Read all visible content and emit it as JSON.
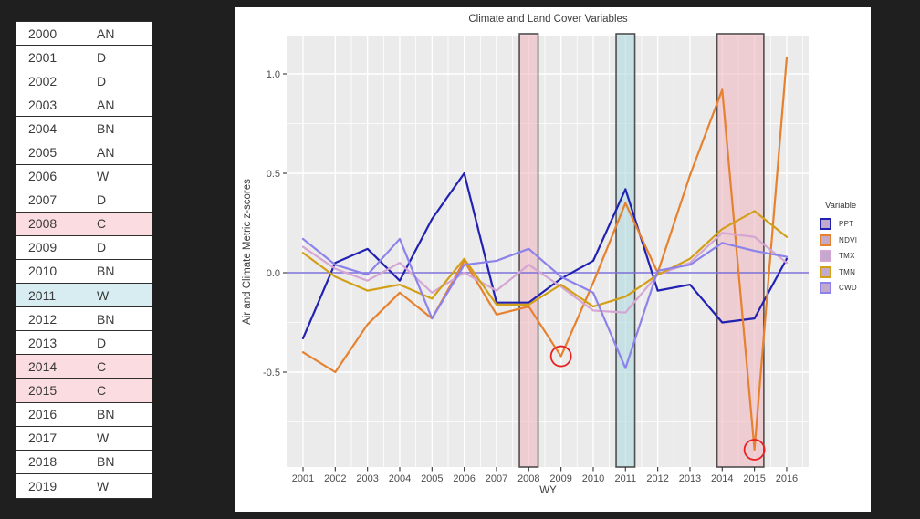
{
  "table": {
    "columns": [
      "water_year",
      "year_type"
    ],
    "rows": [
      {
        "year": "2000",
        "type": "AN",
        "highlight": "none",
        "border_below": true
      },
      {
        "year": "2001",
        "type": "D",
        "highlight": "none",
        "border_below": false
      },
      {
        "year": "2002",
        "type": "D",
        "highlight": "none",
        "border_below": false
      },
      {
        "year": "2003",
        "type": "AN",
        "highlight": "none",
        "border_below": true
      },
      {
        "year": "2004",
        "type": "BN",
        "highlight": "none",
        "border_below": true
      },
      {
        "year": "2005",
        "type": "AN",
        "highlight": "none",
        "border_below": true
      },
      {
        "year": "2006",
        "type": "W",
        "highlight": "none",
        "border_below": false
      },
      {
        "year": "2007",
        "type": "D",
        "highlight": "none",
        "border_below": true
      },
      {
        "year": "2008",
        "type": "C",
        "highlight": "pink",
        "border_below": true
      },
      {
        "year": "2009",
        "type": "D",
        "highlight": "none",
        "border_below": true
      },
      {
        "year": "2010",
        "type": "BN",
        "highlight": "none",
        "border_below": true
      },
      {
        "year": "2011",
        "type": "W",
        "highlight": "blue",
        "border_below": true
      },
      {
        "year": "2012",
        "type": "BN",
        "highlight": "none",
        "border_below": true
      },
      {
        "year": "2013",
        "type": "D",
        "highlight": "none",
        "border_below": true
      },
      {
        "year": "2014",
        "type": "C",
        "highlight": "pink",
        "border_below": true
      },
      {
        "year": "2015",
        "type": "C",
        "highlight": "pink",
        "border_below": true
      },
      {
        "year": "2016",
        "type": "BN",
        "highlight": "none",
        "border_below": true
      },
      {
        "year": "2017",
        "type": "W",
        "highlight": "none",
        "border_below": true
      },
      {
        "year": "2018",
        "type": "BN",
        "highlight": "none",
        "border_below": true
      },
      {
        "year": "2019",
        "type": "W",
        "highlight": "none",
        "border_below": true
      }
    ],
    "highlight_colors": {
      "pink": "#fbdce0",
      "blue": "#d8edf1"
    }
  },
  "chart_data": {
    "type": "line",
    "title": "Climate and Land Cover Variables",
    "xlabel": "WY",
    "ylabel": "Air and Climate Metric z-scores",
    "legend_title": "Variable",
    "legend_position": "right",
    "legend_key_fill": "#c3aacd",
    "grid": "on",
    "panel_color": "#ebebeb",
    "x": [
      2001,
      2002,
      2003,
      2004,
      2005,
      2006,
      2007,
      2008,
      2009,
      2010,
      2011,
      2012,
      2013,
      2014,
      2015,
      2016
    ],
    "ylim": [
      -0.98,
      1.19
    ],
    "yticks": [
      -0.5,
      0.0,
      0.5,
      1.0
    ],
    "series": [
      {
        "name": "PPT",
        "color": "#2222b2",
        "values": [
          -0.33,
          0.05,
          0.12,
          -0.04,
          0.27,
          0.5,
          -0.15,
          -0.15,
          -0.03,
          0.06,
          0.42,
          -0.09,
          -0.06,
          -0.25,
          -0.23,
          0.07
        ]
      },
      {
        "name": "NDVI",
        "color": "#e6812f",
        "values": [
          -0.4,
          -0.5,
          -0.26,
          -0.1,
          -0.23,
          0.06,
          -0.21,
          -0.17,
          -0.42,
          -0.05,
          0.35,
          0.0,
          0.49,
          0.92,
          -0.89,
          1.08
        ]
      },
      {
        "name": "TMX",
        "color": "#d5a6d3",
        "values": [
          0.13,
          0.02,
          -0.04,
          0.05,
          -0.1,
          0.0,
          -0.09,
          0.04,
          -0.07,
          -0.19,
          -0.2,
          -0.01,
          0.05,
          0.2,
          0.18,
          0.05
        ]
      },
      {
        "name": "TMN",
        "color": "#d2a018",
        "values": [
          0.1,
          -0.02,
          -0.09,
          -0.06,
          -0.13,
          0.07,
          -0.16,
          -0.16,
          -0.06,
          -0.17,
          -0.12,
          -0.01,
          0.07,
          0.22,
          0.31,
          0.18
        ]
      },
      {
        "name": "CWD",
        "color": "#8c82ea",
        "values": [
          0.17,
          0.04,
          -0.01,
          0.17,
          -0.23,
          0.04,
          0.06,
          0.12,
          -0.02,
          -0.1,
          -0.48,
          0.01,
          0.04,
          0.15,
          0.11,
          0.08
        ]
      }
    ],
    "reference_line": {
      "y": 0.0,
      "color": "#7b6ed6"
    },
    "bands": [
      {
        "label": "2008",
        "x0": 2007.71,
        "x1": 2008.29,
        "fill": "#eeb7c1",
        "stroke": "#4f4f4f"
      },
      {
        "label": "2011",
        "x0": 2010.71,
        "x1": 2011.29,
        "fill": "#add8de",
        "stroke": "#4f4f4f"
      },
      {
        "label": "2014-2015",
        "x0": 2013.84,
        "x1": 2015.29,
        "fill": "#eeb7c1",
        "stroke": "#4f4f4f"
      }
    ],
    "annotations": [
      {
        "type": "circle",
        "x": 2009,
        "y": -0.42,
        "color": "#e82020"
      },
      {
        "type": "circle",
        "x": 2015,
        "y": -0.89,
        "color": "#e82020"
      }
    ]
  }
}
